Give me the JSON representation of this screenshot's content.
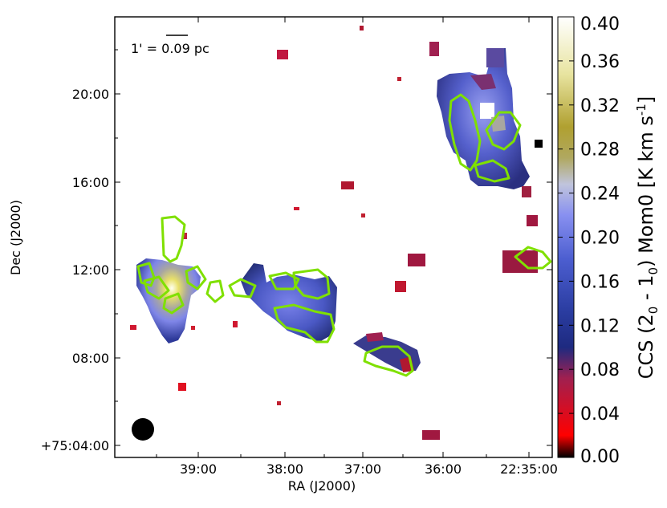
{
  "chart_data": {
    "type": "heatmap",
    "xlabel": "RA (J2000)",
    "ylabel": "Dec (J2000)",
    "x_ticks": [
      "39:00",
      "38:00",
      "37:00",
      "36:00",
      "22:35:00"
    ],
    "y_ticks": [
      "+75:04:00",
      "08:00",
      "12:00",
      "16:00",
      "20:00"
    ],
    "colorbar": {
      "label_parts": [
        "CCS (2",
        "0",
        " - 1",
        "0",
        ") Mom0 [K km s",
        "-1",
        "]"
      ],
      "ticks": [
        "0.00",
        "0.04",
        "0.08",
        "0.12",
        "0.16",
        "0.20",
        "0.24",
        "0.28",
        "0.32",
        "0.36",
        "0.40"
      ],
      "vmin": 0.0,
      "vmax": 0.4,
      "colormap": [
        "#000000",
        "#ff0000",
        "#a02050",
        "#1e2a80",
        "#3040b0",
        "#7f88f0",
        "#c8c8d8",
        "#b0a030",
        "#ffffff"
      ]
    },
    "scale_bar": "1' = 0.09 pc",
    "beam": "filled black circle, lower-left"
  }
}
